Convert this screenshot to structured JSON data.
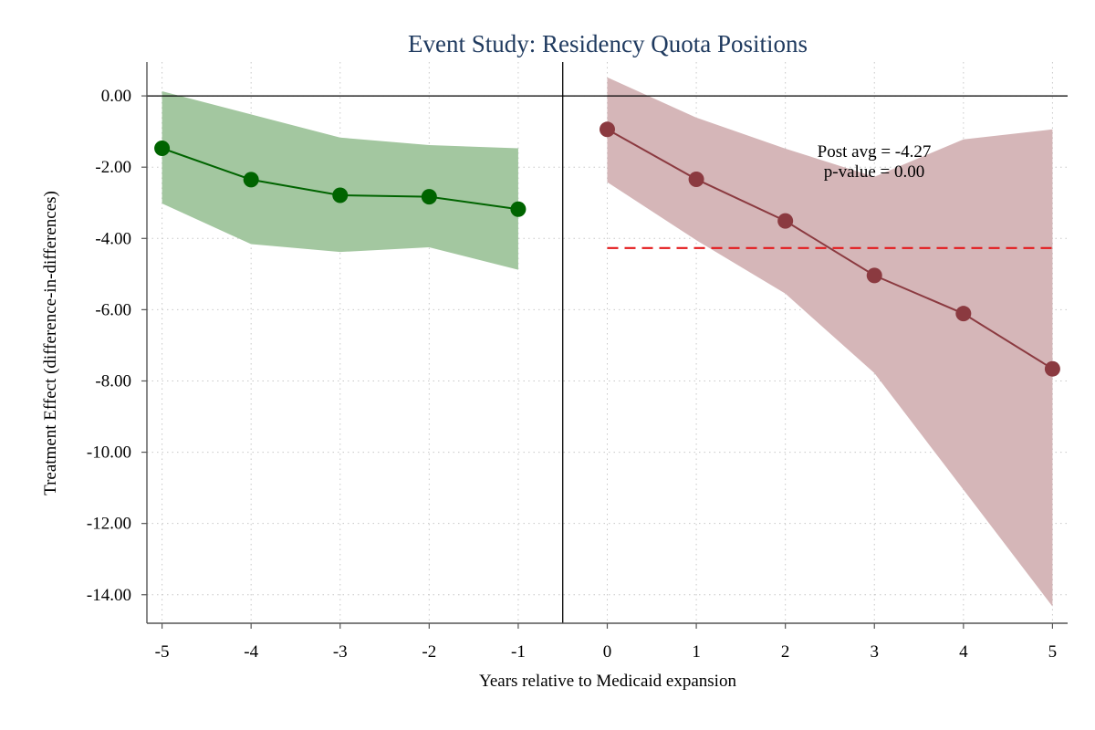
{
  "chart_data": {
    "type": "line",
    "title": "Event Study: Residency Quota Positions",
    "xlabel": "Years relative to Medicaid expansion",
    "ylabel": "Treatment Effect (difference-in-differences)",
    "xlim": [
      -5.17,
      5.17
    ],
    "ylim": [
      -14.8,
      0.95
    ],
    "x_ticks": [
      -5,
      -4,
      -3,
      -2,
      -1,
      0,
      1,
      2,
      3,
      4,
      5
    ],
    "y_ticks": [
      0,
      -2,
      -4,
      -6,
      -8,
      -10,
      -12,
      -14
    ],
    "y_tick_labels": [
      "0.00",
      "-2.00",
      "-4.00",
      "-6.00",
      "-8.00",
      "-10.00",
      "-12.00",
      "-14.00"
    ],
    "grid": true,
    "reference_lines": {
      "y_zero": 0,
      "x_break": -0.5
    },
    "series": [
      {
        "period": "pre",
        "color": "#006400",
        "band_color": "#a3c7a0",
        "x": [
          -5,
          -4,
          -3,
          -2,
          -1
        ],
        "y": [
          -1.47,
          -2.35,
          -2.79,
          -2.83,
          -3.18
        ],
        "ci_low": [
          -3.02,
          -4.16,
          -4.38,
          -4.25,
          -4.88
        ],
        "ci_high": [
          0.13,
          -0.52,
          -1.17,
          -1.38,
          -1.47
        ]
      },
      {
        "period": "post",
        "color": "#8b3a40",
        "band_color": "#d5b6b8",
        "x": [
          0,
          1,
          2,
          3,
          4,
          5
        ],
        "y": [
          -0.94,
          -2.34,
          -3.51,
          -5.04,
          -6.11,
          -7.66
        ],
        "ci_low": [
          -2.42,
          -4.05,
          -5.55,
          -7.78,
          -11.05,
          -14.33
        ],
        "ci_high": [
          0.52,
          -0.61,
          -1.48,
          -2.27,
          -1.22,
          -0.94
        ]
      }
    ],
    "post_avg_line": {
      "y": -4.27,
      "x_start": 0,
      "x_end": 5,
      "color": "#e41a1c",
      "style": "dashed"
    },
    "annotations": [
      "Post avg = -4.27",
      "p-value = 0.00"
    ]
  }
}
